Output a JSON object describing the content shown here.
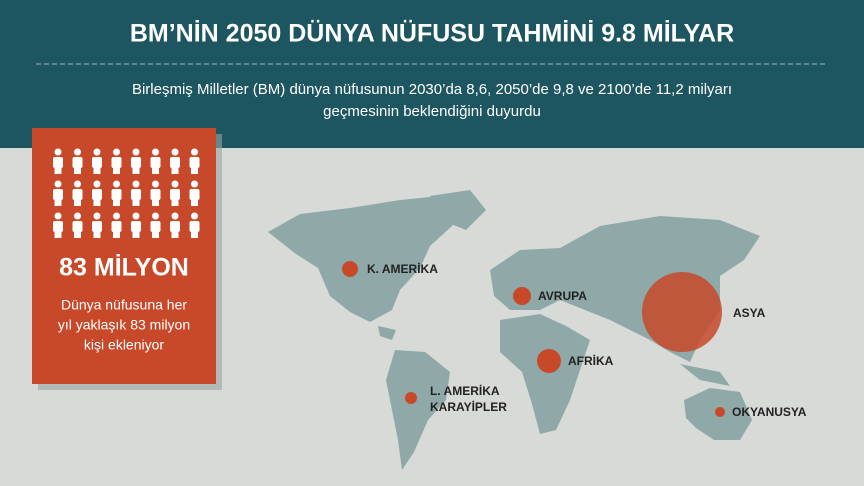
{
  "header": {
    "title": "BM’NİN 2050 DÜNYA NÜFUSU TAHMİNİ 9.8 MİLYAR",
    "subtitle": [
      "Birleşmiş Milletler (BM) dünya nüfusunun 2030’da 8,6, 2050’de 9,8 ve 2100’de 11,2 milyarı",
      "geçmesinin beklendiğini duyurdu"
    ]
  },
  "stat": {
    "value": "83 MİLYON",
    "text": [
      "Dünya nüfusuna her",
      "yıl yaklaşık 83 milyon",
      "kişi ekleniyor"
    ]
  },
  "regions": [
    {
      "label": [
        "K. AMERİKA"
      ]
    },
    {
      "label": [
        "AVRUPA"
      ]
    },
    {
      "label": [
        "ASYA"
      ]
    },
    {
      "label": [
        "AFRİKA"
      ]
    },
    {
      "label": [
        "L. AMERİKA",
        "KARAYİPLER"
      ]
    },
    {
      "label": [
        "OKYANUSYA"
      ]
    }
  ]
}
